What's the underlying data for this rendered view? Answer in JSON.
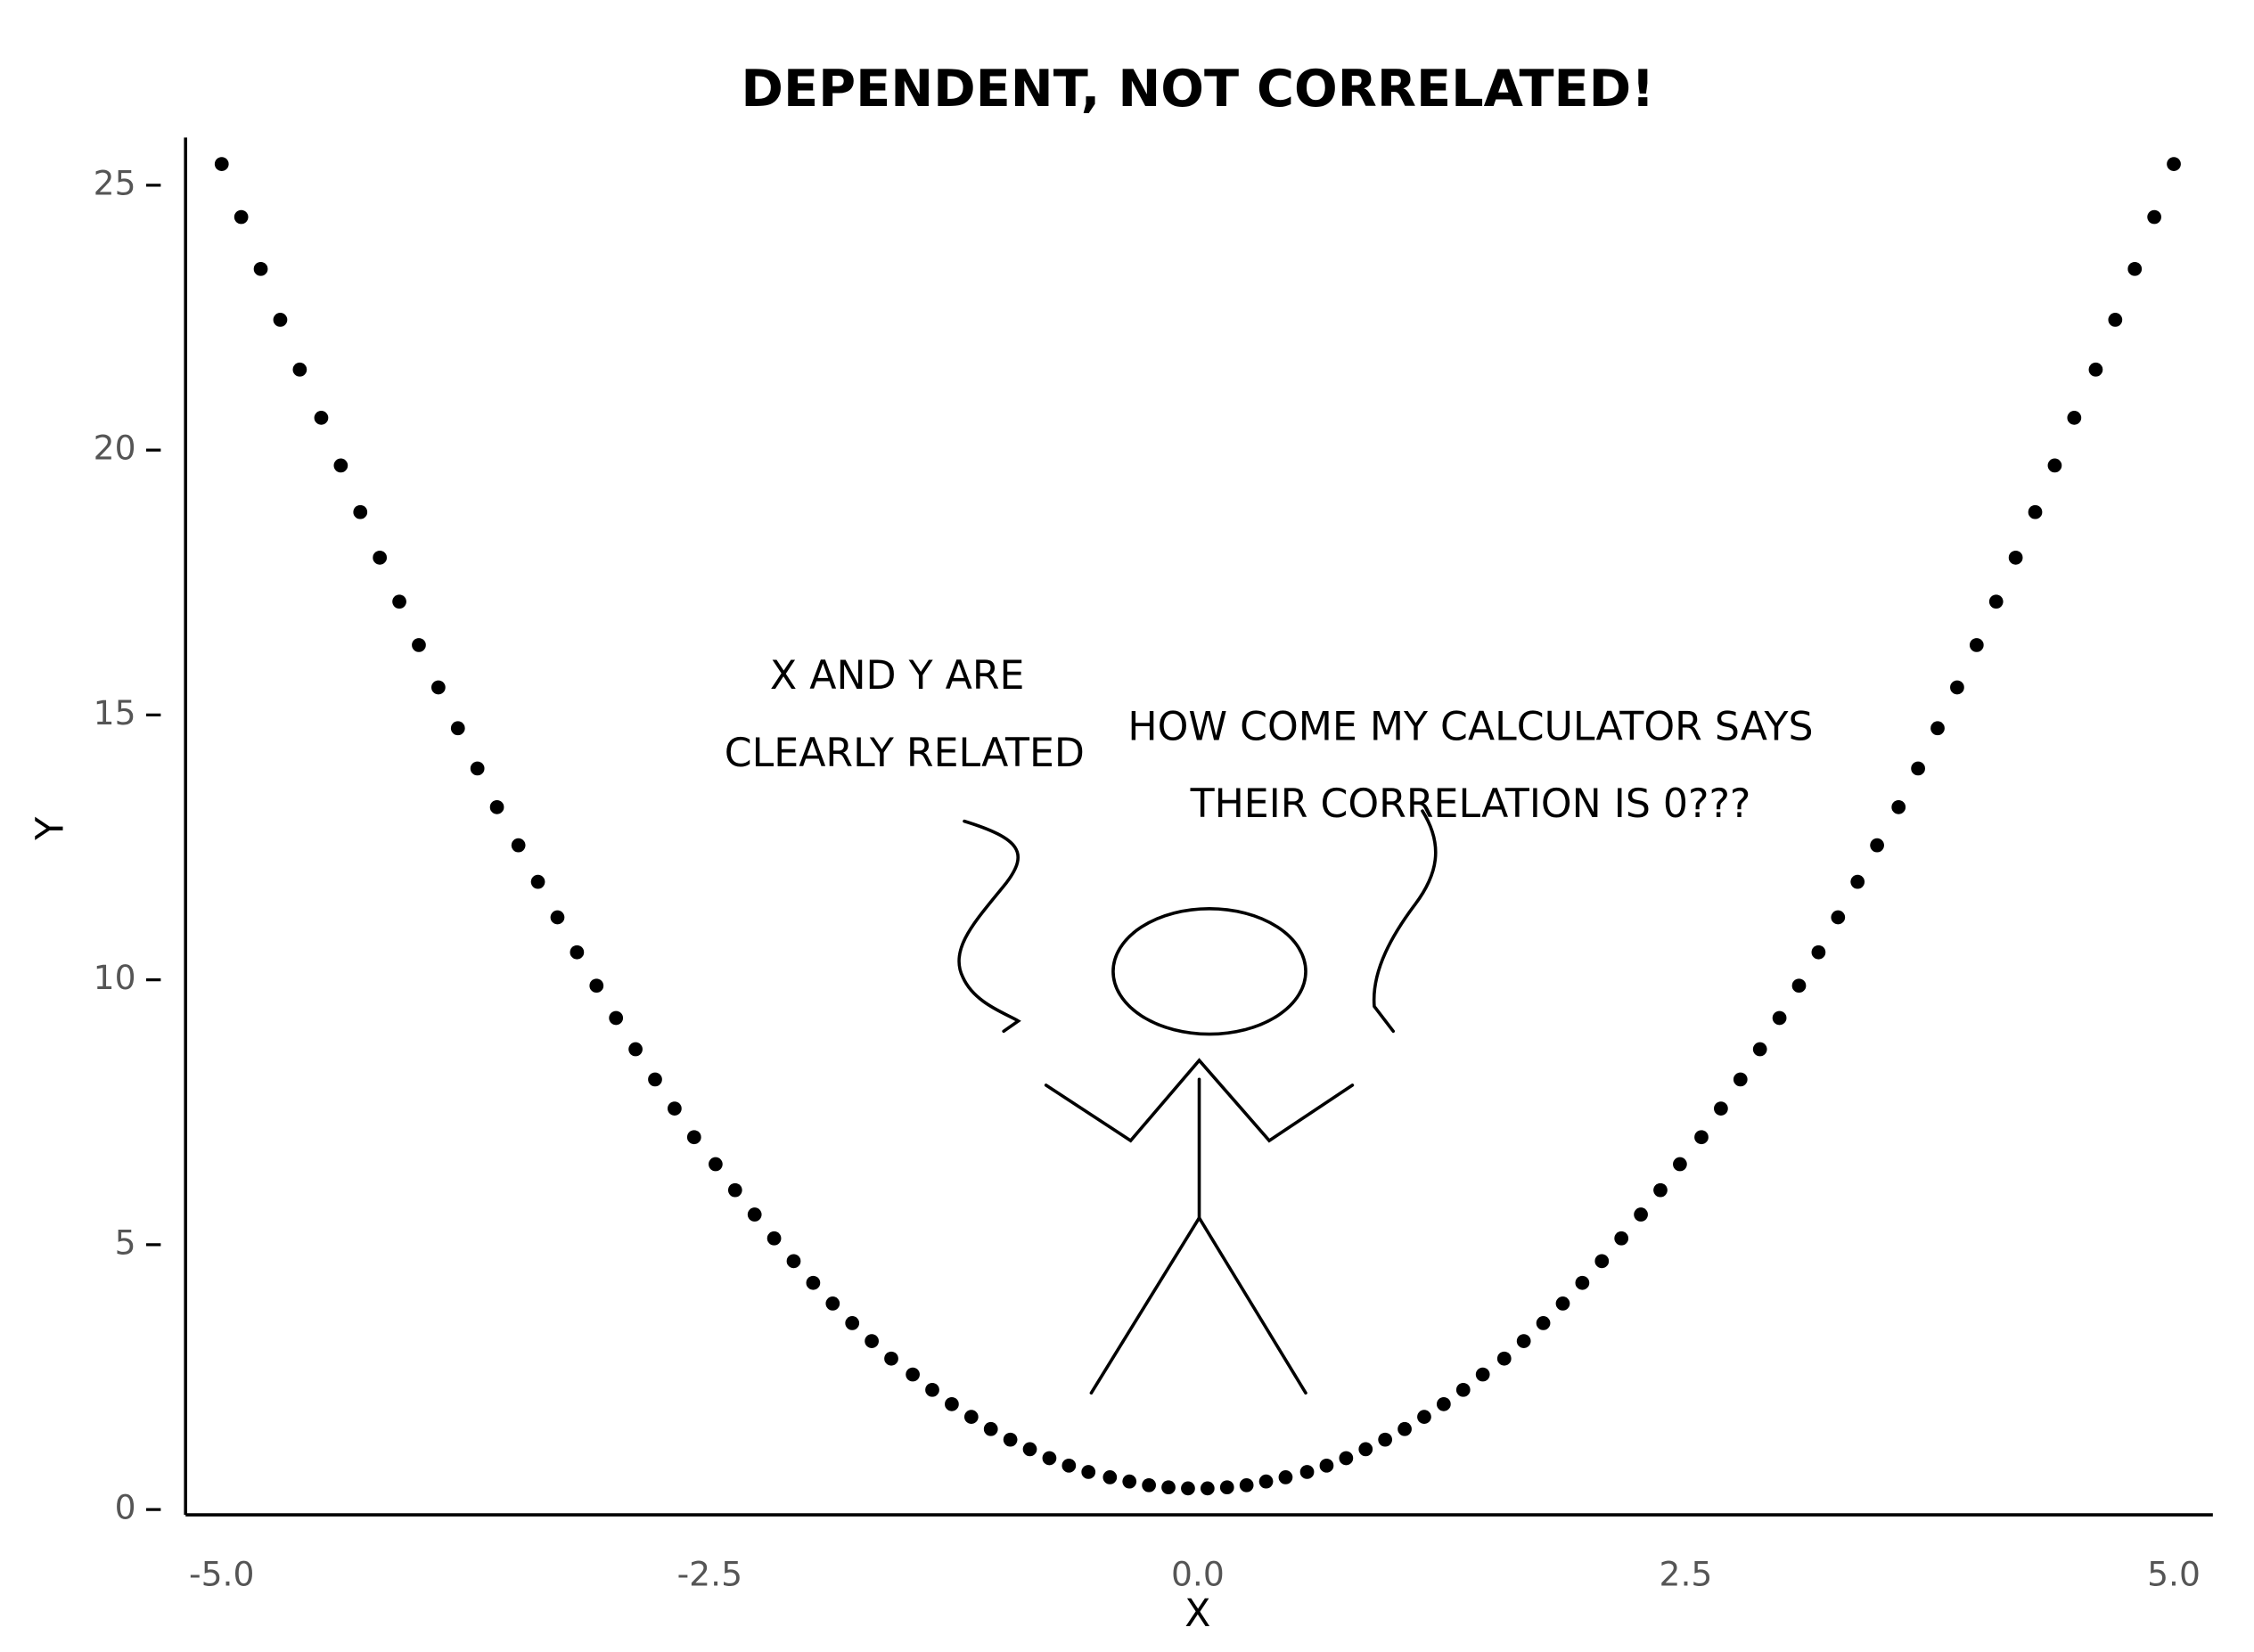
{
  "chart_data": {
    "type": "scatter",
    "title": "DEPENDENT, NOT CORRELATED!",
    "x_label": "X",
    "y_label": "Y",
    "color": "#000000",
    "x": [
      -5,
      -4.9,
      -4.8,
      -4.7,
      -4.6,
      -4.49,
      -4.39,
      -4.29,
      -4.19,
      -4.09,
      -3.99,
      -3.89,
      -3.79,
      -3.69,
      -3.59,
      -3.48,
      -3.38,
      -3.28,
      -3.18,
      -3.08,
      -2.98,
      -2.88,
      -2.78,
      -2.68,
      -2.58,
      -2.47,
      -2.37,
      -2.27,
      -2.17,
      -2.07,
      -1.97,
      -1.87,
      -1.77,
      -1.67,
      -1.57,
      -1.46,
      -1.36,
      -1.26,
      -1.16,
      -1.06,
      -0.96,
      -0.86,
      -0.76,
      -0.66,
      -0.56,
      -0.45,
      -0.35,
      -0.25,
      -0.15,
      -0.05,
      0.05,
      0.15,
      0.25,
      0.35,
      0.45,
      0.56,
      0.66,
      0.76,
      0.86,
      0.96,
      1.06,
      1.16,
      1.26,
      1.36,
      1.46,
      1.57,
      1.67,
      1.77,
      1.87,
      1.97,
      2.07,
      2.17,
      2.27,
      2.37,
      2.47,
      2.58,
      2.68,
      2.78,
      2.88,
      2.98,
      3.08,
      3.18,
      3.28,
      3.38,
      3.48,
      3.59,
      3.69,
      3.79,
      3.89,
      3.99,
      4.09,
      4.19,
      4.29,
      4.39,
      4.49,
      4.6,
      4.7,
      4.8,
      4.9,
      5
    ],
    "y": [
      25.4,
      24.4,
      23.42,
      22.46,
      21.52,
      20.61,
      19.71,
      18.83,
      17.97,
      17.14,
      16.32,
      15.52,
      14.75,
      13.99,
      13.26,
      12.54,
      11.85,
      11.18,
      10.52,
      9.89,
      9.28,
      8.69,
      8.12,
      7.57,
      7.03,
      6.52,
      6.03,
      5.57,
      5.12,
      4.69,
      4.28,
      3.89,
      3.52,
      3.18,
      2.85,
      2.55,
      2.26,
      1.99,
      1.75,
      1.52,
      1.32,
      1.14,
      0.97,
      0.83,
      0.71,
      0.61,
      0.53,
      0.46,
      0.42,
      0.4,
      0.4,
      0.42,
      0.46,
      0.53,
      0.61,
      0.71,
      0.83,
      0.97,
      1.14,
      1.32,
      1.52,
      1.75,
      1.99,
      2.26,
      2.55,
      2.85,
      3.18,
      3.52,
      3.89,
      4.28,
      4.69,
      5.12,
      5.57,
      6.03,
      6.52,
      7.03,
      7.57,
      8.12,
      8.69,
      9.28,
      9.89,
      10.52,
      11.18,
      11.85,
      12.54,
      13.26,
      13.99,
      14.75,
      15.52,
      16.32,
      17.14,
      17.97,
      18.83,
      19.71,
      20.61,
      21.52,
      22.46,
      23.42,
      24.4,
      25.4
    ],
    "xlim": [
      -5.2,
      5.2
    ],
    "ylim": [
      -0.1,
      25.9
    ],
    "xticks": [
      {
        "value": -5,
        "label": "-5.0"
      },
      {
        "value": -2.5,
        "label": "-2.5"
      },
      {
        "value": 0,
        "label": "0.0"
      },
      {
        "value": 2.5,
        "label": "2.5"
      },
      {
        "value": 5,
        "label": "5.0"
      }
    ],
    "yticks": [
      0,
      5,
      10,
      15,
      20,
      25
    ],
    "grid": false,
    "annotations": [
      {
        "lines": [
          "X AND Y ARE",
          "CLEARLY RELATED"
        ]
      },
      {
        "lines": [
          "HOW COME MY CALCULATOR SAYS",
          "THEIR CORRELATION IS 0???"
        ]
      }
    ]
  }
}
